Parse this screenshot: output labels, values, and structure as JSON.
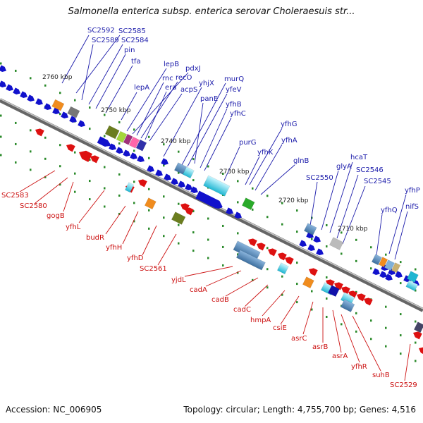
{
  "title": "Salmonella enterica subsp. enterica serovar Choleraesuis str...",
  "footer": {
    "accession": "Accession: NC_006905",
    "topology": "Topology: circular; Length: 4,755,700 bp; Genes: 4,516"
  },
  "colors": {
    "forward_label": "#1a1aaa",
    "reverse_label": "#cc1111",
    "forward_arrow": "#1111cc",
    "reverse_arrow": "#dd1111",
    "backbone": "#777777",
    "tick": "#2a8a2a"
  },
  "scale_labels": [
    "2760 kbp",
    "2750 kbp",
    "2740 kbp",
    "2730 kbp",
    "2720 kbp",
    "2710 kbp"
  ],
  "forward_genes": [
    "SC2592",
    "SC2585",
    "SC2589",
    "SC2584",
    "pin",
    "tfa",
    "lepB",
    "pdxJ",
    "rnc",
    "recO",
    "lepA",
    "era",
    "acpS",
    "yhjX",
    "murQ",
    "yfeV",
    "panE",
    "yfhB",
    "yfhC",
    "purG",
    "yfhG",
    "yfhA",
    "yfhK",
    "glnB",
    "SC2550",
    "glyA",
    "hcaT",
    "SC2546",
    "SC2545",
    "yfhP",
    "yfhQ",
    "nifS"
  ],
  "reverse_genes": [
    "SC2583",
    "SC2580",
    "gogB",
    "yfhL",
    "budR",
    "yfhH",
    "yfhD",
    "SC2561",
    "yjdL",
    "cadA",
    "cadB",
    "cadC",
    "hmpA",
    "csiE",
    "asrC",
    "asrB",
    "asrA",
    "yfhR",
    "suhB",
    "SC2529"
  ]
}
